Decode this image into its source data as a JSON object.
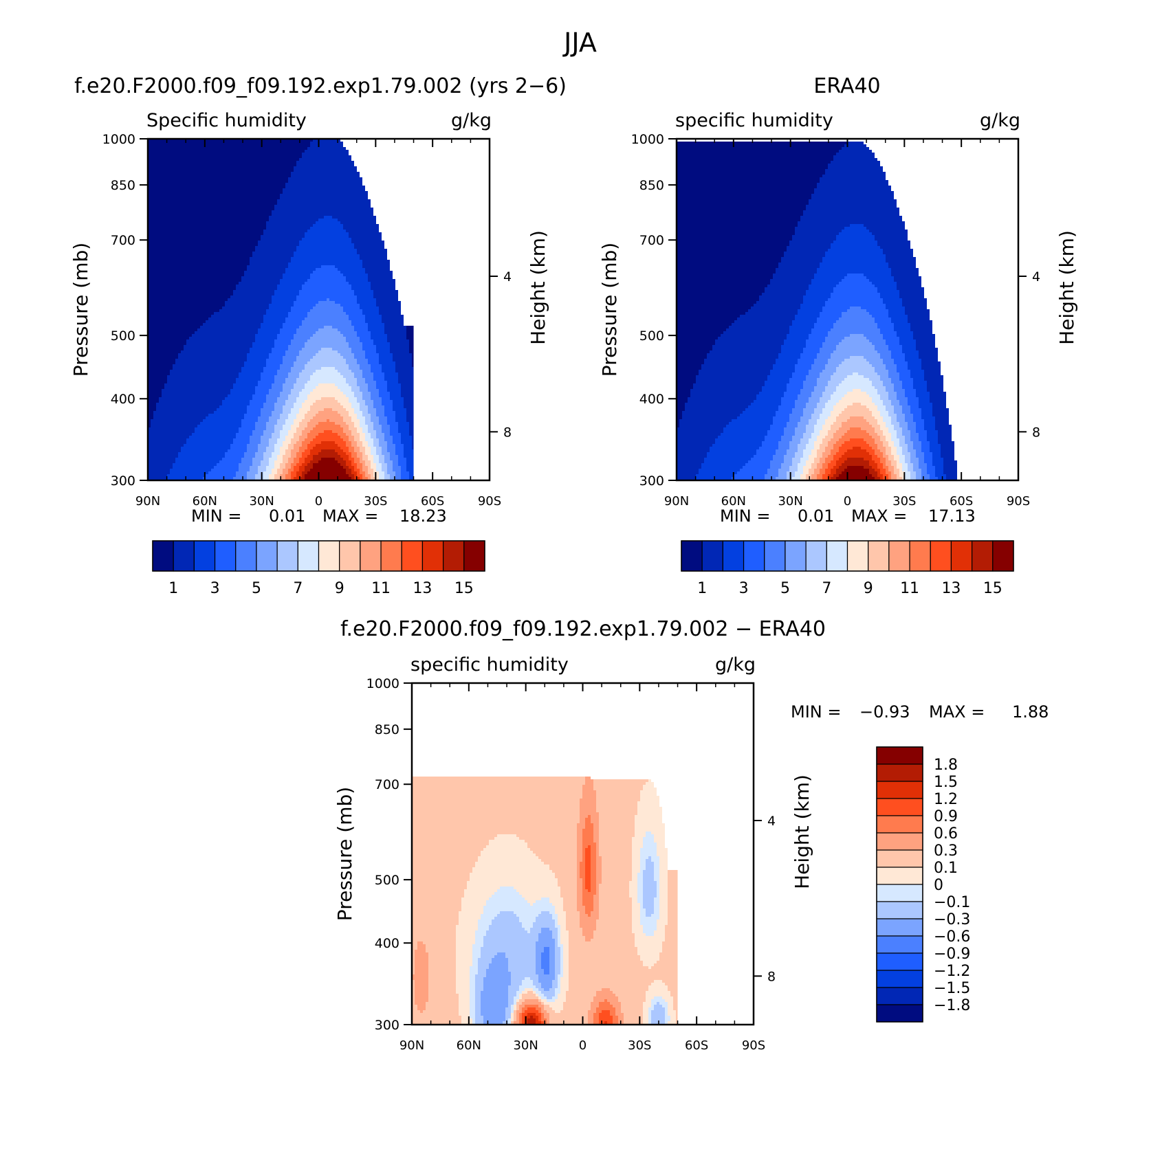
{
  "figure_title": "JJA",
  "colors": {
    "abs_scale": [
      "#000C80",
      "#0127B5",
      "#0340E0",
      "#1F5EFF",
      "#4B80FF",
      "#7BA4FF",
      "#ABC7FF",
      "#D6E8FF",
      "#FFE8D6",
      "#FFC6AB",
      "#FFA280",
      "#FF7B4E",
      "#FF4F1F",
      "#E13006",
      "#B31C04",
      "#850000"
    ],
    "diff_scale": [
      "#000C80",
      "#0127B5",
      "#0340E0",
      "#1F5EFF",
      "#4B80FF",
      "#7BA4FF",
      "#ABC7FF",
      "#D6E8FF",
      "#FFE8D6",
      "#FFC6AB",
      "#FFA280",
      "#FF7B4E",
      "#FF4F1F",
      "#E13006",
      "#B31C04",
      "#850000"
    ]
  },
  "chart_data": [
    {
      "id": "model",
      "type": "heatmap",
      "title": "f.e20.F2000.f09_f09.192.exp1.79.002 (yrs 2−6)",
      "left_label": "Specific humidity",
      "right_label": "g/kg",
      "xlabel": "",
      "ylabel": "Pressure (mb)",
      "y2label": "Height (km)",
      "x_ticks": [
        "90N",
        "60N",
        "30N",
        "0",
        "30S",
        "60S",
        "90S"
      ],
      "x_range": [
        90,
        -90
      ],
      "y_ticks": [
        "300",
        "400",
        "500",
        "700",
        "850",
        "1000"
      ],
      "y_range_mb": [
        1000,
        300
      ],
      "y2_ticks": [
        "8",
        "4"
      ],
      "min_label": "MIN =",
      "min_value": "0.01",
      "max_label": "MAX =",
      "max_value": "18.23",
      "colorbar_labels": [
        "1",
        "3",
        "5",
        "7",
        "9",
        "11",
        "13",
        "15"
      ],
      "peak": {
        "lat": -8,
        "value": 18.23
      }
    },
    {
      "id": "obs",
      "type": "heatmap",
      "title": "ERA40",
      "left_label": "specific humidity",
      "right_label": "g/kg",
      "xlabel": "",
      "ylabel": "Pressure (mb)",
      "y2label": "Height (km)",
      "x_ticks": [
        "90N",
        "60N",
        "30N",
        "0",
        "30S",
        "60S",
        "90S"
      ],
      "x_range": [
        90,
        -90
      ],
      "y_ticks": [
        "300",
        "400",
        "500",
        "700",
        "850",
        "1000"
      ],
      "y_range_mb": [
        1000,
        300
      ],
      "y2_ticks": [
        "8",
        "4"
      ],
      "min_label": "MIN =",
      "min_value": "0.01",
      "max_label": "MAX =",
      "max_value": "17.13",
      "colorbar_labels": [
        "1",
        "3",
        "5",
        "7",
        "9",
        "11",
        "13",
        "15"
      ],
      "peak": {
        "lat": -8,
        "value": 17.13
      }
    },
    {
      "id": "diff",
      "type": "heatmap",
      "title": "f.e20.F2000.f09_f09.192.exp1.79.002 − ERA40",
      "left_label": "specific humidity",
      "right_label": "g/kg",
      "xlabel": "",
      "ylabel": "Pressure (mb)",
      "y2label": "Height (km)",
      "x_ticks": [
        "90N",
        "60N",
        "30N",
        "0",
        "30S",
        "60S",
        "90S"
      ],
      "x_range": [
        90,
        -90
      ],
      "y_ticks": [
        "300",
        "400",
        "500",
        "700",
        "850",
        "1000"
      ],
      "y_range_mb": [
        1000,
        300
      ],
      "y2_ticks": [
        "8",
        "4"
      ],
      "min_label": "MIN =",
      "min_value": "−0.93",
      "max_label": "MAX =",
      "max_value": "1.88",
      "colorbar_labels": [
        "1.8",
        "1.5",
        "1.2",
        "0.9",
        "0.6",
        "0.3",
        "0.1",
        "0",
        "−0.1",
        "−0.3",
        "−0.6",
        "−0.9",
        "−1.2",
        "−1.5",
        "−1.8"
      ]
    }
  ]
}
